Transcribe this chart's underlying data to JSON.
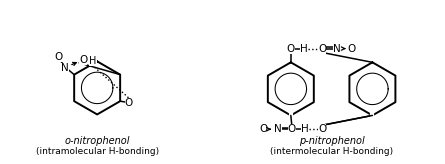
{
  "bg_color": "#ffffff",
  "left_label1": "o-nitrophenol",
  "left_label2": "(intramolecular H-bonding)",
  "right_label1": "p-nitrophenol",
  "right_label2": "(intermolecular H-bonding)",
  "fig_width": 4.45,
  "fig_height": 1.64,
  "dpi": 100
}
